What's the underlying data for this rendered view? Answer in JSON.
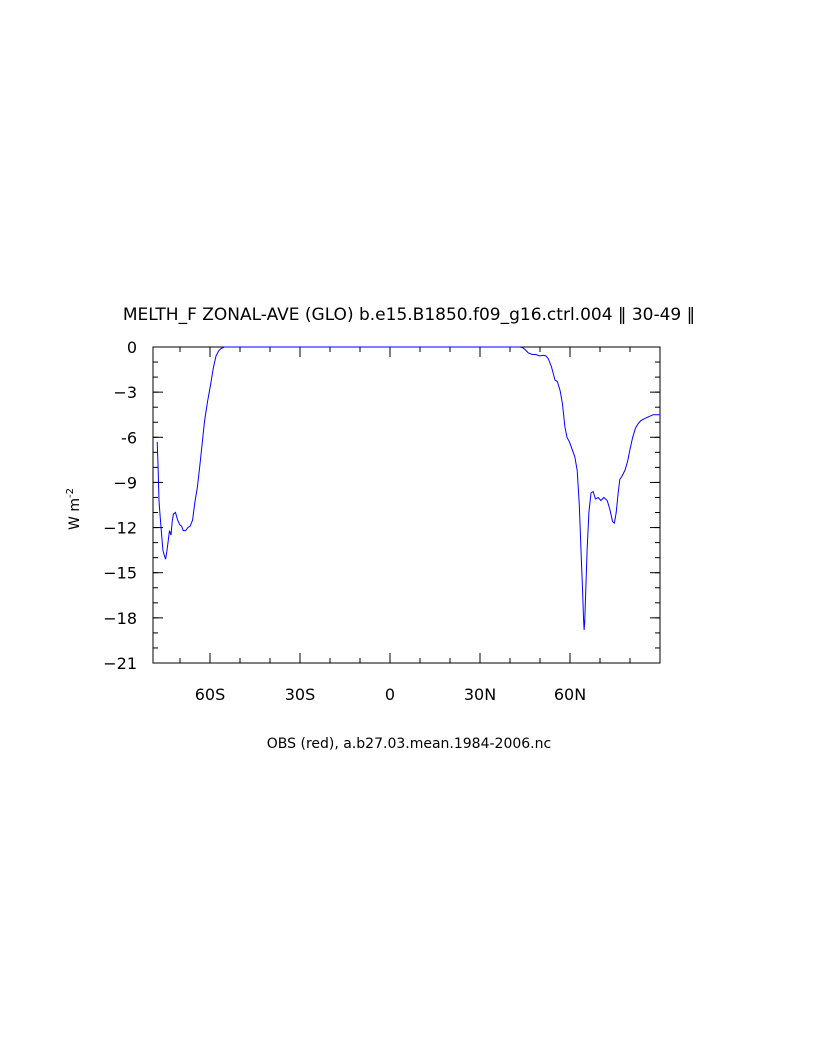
{
  "chart_data": {
    "type": "line",
    "title": "MELTH_F ZONAL-AVE (GLO) b.e15.B1850.f09_g16.ctrl.004 ‖ 30-49 ‖",
    "xlabel": "OBS (red), a.b27.03.mean.1984-2006.nc",
    "ylabel": "W m",
    "ylabel_superscript": "-2",
    "xlim": [
      -79,
      90
    ],
    "ylim": [
      -21,
      0
    ],
    "x_ticks": [
      {
        "value": -60,
        "label": "60S"
      },
      {
        "value": -30,
        "label": "30S"
      },
      {
        "value": 0,
        "label": "0"
      },
      {
        "value": 30,
        "label": "30N"
      },
      {
        "value": 60,
        "label": "60N"
      }
    ],
    "y_ticks": [
      {
        "value": 0,
        "label": "0"
      },
      {
        "value": -3,
        "label": "−3"
      },
      {
        "value": -6,
        "label": "-6"
      },
      {
        "value": -9,
        "label": "−9"
      },
      {
        "value": -12,
        "label": "−12"
      },
      {
        "value": -15,
        "label": "−15"
      },
      {
        "value": -18,
        "label": "−18"
      },
      {
        "value": -21,
        "label": "−21"
      }
    ],
    "x_minor_step": 10,
    "y_minor_step": 1,
    "grid": false,
    "series": [
      {
        "color": "#0000ff",
        "x": [
          -77.6,
          -77.3,
          -77.0,
          -76.6,
          -76.2,
          -75.7,
          -75.3,
          -74.8,
          -74.4,
          -74.0,
          -73.5,
          -73.0,
          -72.6,
          -72.2,
          -71.5,
          -70.8,
          -70.1,
          -69.5,
          -68.9,
          -68.1,
          -67.4,
          -66.6,
          -65.8,
          -65.1,
          -64.2,
          -63.4,
          -62.6,
          -61.8,
          -60.8,
          -59.8,
          -58.9,
          -58.0,
          -57.1,
          -56.3,
          -55.2,
          -54.0,
          -52.9,
          -51.9,
          43.4,
          44.3,
          45.2,
          46.1,
          47.4,
          48.6,
          49.9,
          51.1,
          52.0,
          52.8,
          53.8,
          55.0,
          55.8,
          56.7,
          57.5,
          58.3,
          59.0,
          59.8,
          60.7,
          61.6,
          62.4,
          63.1,
          63.7,
          64.2,
          64.5,
          64.7,
          64.9,
          65.2,
          65.7,
          66.3,
          67.0,
          67.7,
          68.5,
          69.4,
          70.3,
          71.3,
          72.4,
          73.3,
          74.2,
          74.8,
          75.4,
          76.0,
          76.6,
          77.3,
          78.3,
          79.2,
          80.0,
          80.9,
          81.8,
          82.7,
          83.6,
          84.5,
          85.5,
          86.6,
          87.8,
          89.0,
          89.8
        ],
        "y": [
          -6.3,
          -8.0,
          -10.2,
          -11.3,
          -12.3,
          -13.5,
          -13.8,
          -14.1,
          -13.6,
          -13.0,
          -12.2,
          -12.5,
          -11.6,
          -11.1,
          -11.0,
          -11.5,
          -11.8,
          -11.9,
          -12.2,
          -12.2,
          -12.0,
          -11.9,
          -11.5,
          -10.4,
          -9.3,
          -7.9,
          -6.4,
          -4.9,
          -3.6,
          -2.5,
          -1.4,
          -0.6,
          -0.25,
          -0.1,
          0.0,
          0.0,
          0.0,
          0.0,
          0.0,
          -0.05,
          -0.2,
          -0.4,
          -0.5,
          -0.5,
          -0.6,
          -0.55,
          -0.6,
          -0.8,
          -1.3,
          -2.2,
          -2.3,
          -2.9,
          -3.8,
          -5.3,
          -6.0,
          -6.3,
          -6.8,
          -7.3,
          -8.2,
          -10.5,
          -13.7,
          -16.2,
          -18.0,
          -18.8,
          -18.3,
          -16.5,
          -13.5,
          -11.0,
          -9.7,
          -9.6,
          -10.1,
          -10.0,
          -10.2,
          -10.0,
          -10.2,
          -10.8,
          -11.6,
          -11.7,
          -11.0,
          -9.8,
          -8.8,
          -8.6,
          -8.2,
          -7.6,
          -6.8,
          -6.0,
          -5.4,
          -5.1,
          -4.9,
          -4.8,
          -4.7,
          -4.6,
          -4.5,
          -4.5,
          -4.5
        ]
      }
    ]
  }
}
